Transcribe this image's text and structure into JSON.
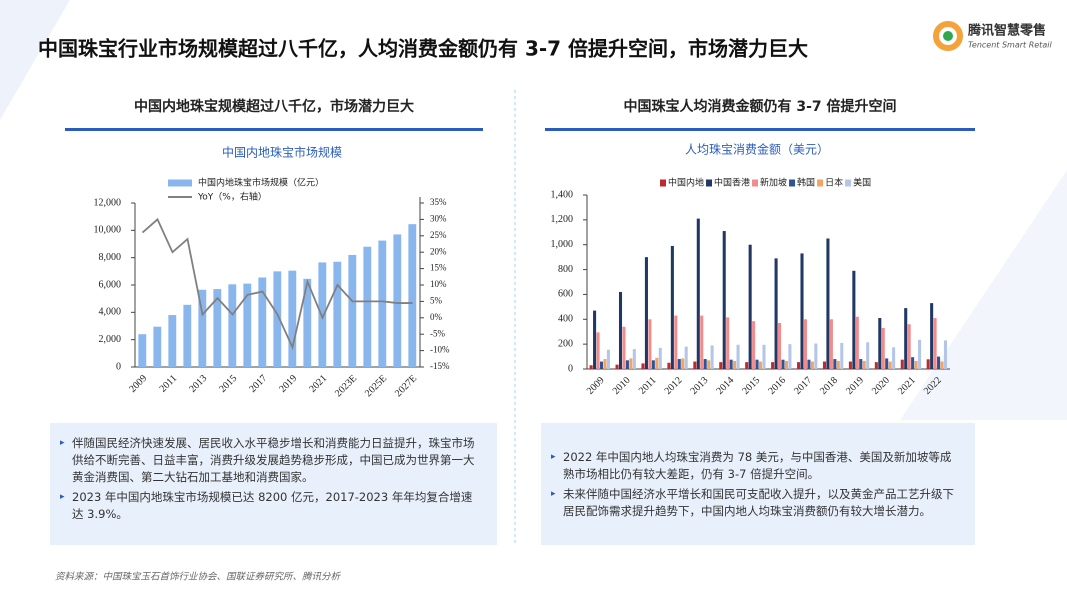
{
  "header": {
    "title": "中国珠宝行业市场规模超过八千亿，人均消费金额仍有 3-7 倍提升空间，市场潜力巨大",
    "logo_cn": "腾讯智慧零售",
    "logo_en": "Tencent Smart Retail"
  },
  "panels": [
    {
      "heading": "中国内地珠宝规模超过八千亿，市场潜力巨大",
      "bullets": [
        "伴随国民经济快速发展、居民收入水平稳步增长和消费能力日益提升，珠宝市场供给不断完善、日益丰富，消费升级发展趋势稳步形成，中国已成为世界第一大黄金消费国、第二大钻石加工基地和消费国家。",
        "2023 年中国内地珠宝市场规模已达 8200 亿元，2017-2023 年年均复合增速达 3.9%。"
      ]
    },
    {
      "heading": "中国珠宝人均消费金额仍有 3-7 倍提升空间",
      "bullets": [
        "2022 年中国内地人均珠宝消费为 78 美元，与中国香港、美国及新加坡等成熟市场相比仍有较大差距，仍有 3-7 倍提升空间。",
        "未来伴随中国经济水平增长和国民可支配收入提升，以及黄金产品工艺升级下居民配饰需求提升趋势下，中国内地人均珠宝消费额仍有较大增长潜力。"
      ]
    }
  ],
  "source": "资料来源：中国珠宝玉石首饰行业协会、国联证券研究所、腾讯分析",
  "chart_data": [
    {
      "type": "bar",
      "title": "中国内地珠宝市场规模",
      "categories": [
        "2009",
        null,
        "2011",
        null,
        "2013",
        null,
        "2015",
        null,
        "2017",
        null,
        "2019",
        null,
        "2021",
        null,
        "2023E",
        null,
        "2025E",
        null,
        "2027E"
      ],
      "series": [
        {
          "name": "中国内地珠宝市场规模（亿元）",
          "color": "#8ab6ee",
          "values": [
            2400,
            2950,
            3800,
            4550,
            5650,
            5700,
            6050,
            6100,
            6550,
            7000,
            7050,
            6450,
            7650,
            7700,
            8200,
            8800,
            9250,
            9700,
            10450
          ]
        },
        {
          "name": "YoY（%，右轴）",
          "color": "#808080",
          "type": "line",
          "axis": "y2",
          "values": [
            26,
            30,
            20,
            24,
            1,
            6,
            1,
            7,
            8,
            1,
            -9,
            11,
            0,
            10,
            5,
            5,
            5,
            4.5,
            4.5
          ]
        }
      ],
      "ylim": [
        0,
        12000
      ],
      "yticks": [
        0,
        {
          "value": 2000,
          "label": "2,000"
        },
        {
          "value": 4000,
          "label": "4,000"
        },
        {
          "value": 6000,
          "label": "6,000"
        },
        {
          "value": 8000,
          "label": "8,000"
        },
        {
          "value": 10000,
          "label": "10,000"
        },
        {
          "value": 12000,
          "label": "12,000"
        }
      ],
      "y2lim": [
        -15,
        35
      ],
      "y2ticks": [
        {
          "value": -15,
          "label": "-15%"
        },
        {
          "value": -10,
          "label": "-10%"
        },
        {
          "value": -5,
          "label": "-5%"
        },
        {
          "value": 0,
          "label": "0%"
        },
        {
          "value": 5,
          "label": "5%"
        },
        {
          "value": 10,
          "label": "10%"
        },
        {
          "value": 15,
          "label": "15%"
        },
        {
          "value": 20,
          "label": "20%"
        },
        {
          "value": 25,
          "label": "25%"
        },
        {
          "value": 30,
          "label": "30%"
        },
        {
          "value": 35,
          "label": "35%"
        }
      ],
      "grid": false
    },
    {
      "type": "bar",
      "title": "人均珠宝消费金额（美元）",
      "categories": [
        "2009",
        "2010",
        "2011",
        "2012",
        "2013",
        "2014",
        "2015",
        "2016",
        "2017",
        "2018",
        "2019",
        "2020",
        "2021",
        "2022"
      ],
      "series": [
        {
          "name": "中国内地",
          "color": "#c0282d",
          "values": [
            30,
            35,
            45,
            50,
            60,
            55,
            55,
            55,
            55,
            60,
            60,
            55,
            75,
            78
          ]
        },
        {
          "name": "中国香港",
          "color": "#1f3864",
          "values": [
            470,
            620,
            900,
            990,
            1210,
            1110,
            1000,
            890,
            930,
            1050,
            790,
            410,
            490,
            530
          ]
        },
        {
          "name": "新加坡",
          "color": "#f08c8c",
          "values": [
            295,
            340,
            400,
            430,
            430,
            415,
            385,
            370,
            400,
            400,
            420,
            330,
            360,
            410
          ]
        },
        {
          "name": "韩国",
          "color": "#2e5496",
          "values": [
            60,
            70,
            70,
            80,
            80,
            75,
            75,
            75,
            75,
            80,
            80,
            85,
            95,
            100
          ]
        },
        {
          "name": "日本",
          "color": "#f4a460",
          "values": [
            80,
            85,
            90,
            85,
            70,
            65,
            60,
            65,
            60,
            65,
            65,
            60,
            65,
            60
          ]
        },
        {
          "name": "美国",
          "color": "#b4c6e7",
          "values": [
            155,
            160,
            170,
            180,
            190,
            195,
            195,
            200,
            205,
            210,
            215,
            175,
            235,
            230
          ]
        }
      ],
      "ylim": [
        0,
        1400
      ],
      "yticks": [
        0,
        200,
        400,
        600,
        800,
        {
          "value": 1000,
          "label": "1,000"
        },
        {
          "value": 1200,
          "label": "1,200"
        },
        {
          "value": 1400,
          "label": "1,400"
        }
      ],
      "grid": false
    }
  ]
}
